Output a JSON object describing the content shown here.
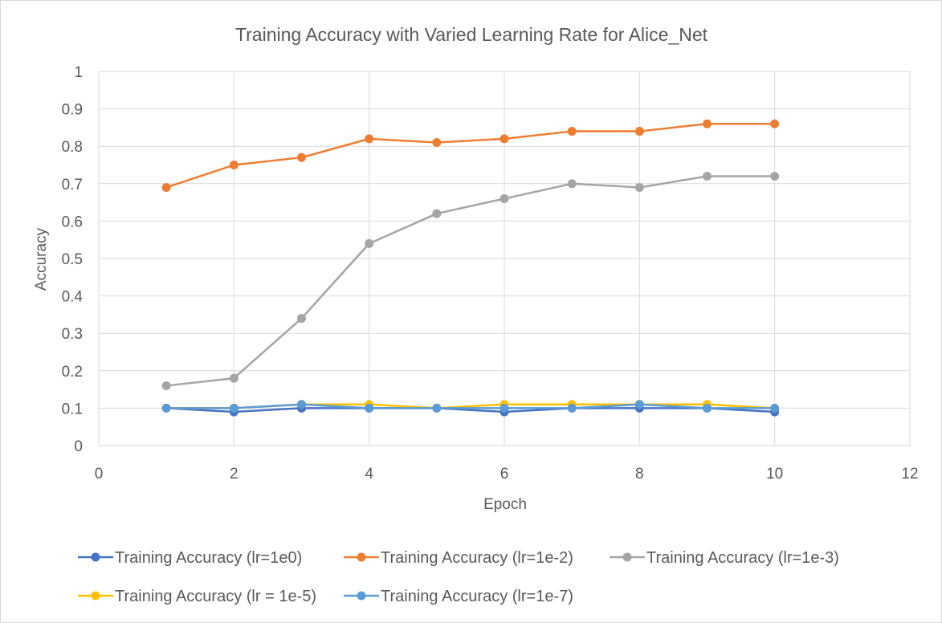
{
  "chart_data": {
    "type": "line",
    "title": "Training Accuracy with Varied Learning Rate for Alice_Net",
    "xlabel": "Epoch",
    "ylabel": "Accuracy",
    "xlim": [
      0,
      12
    ],
    "ylim": [
      0,
      1
    ],
    "x_ticks": [
      "0",
      "2",
      "4",
      "6",
      "8",
      "10",
      "12"
    ],
    "y_ticks": [
      "0",
      "0.1",
      "0.2",
      "0.3",
      "0.4",
      "0.5",
      "0.6",
      "0.7",
      "0.8",
      "0.9",
      "1"
    ],
    "grid": true,
    "legend_position": "bottom",
    "x": [
      1,
      2,
      3,
      4,
      5,
      6,
      7,
      8,
      9,
      10
    ],
    "series": [
      {
        "name": "Training Accuracy (lr=1e0)",
        "color": "#4472c4",
        "values": [
          0.1,
          0.09,
          0.1,
          0.1,
          0.1,
          0.09,
          0.1,
          0.1,
          0.1,
          0.09
        ]
      },
      {
        "name": "Training Accuracy (lr=1e-2)",
        "color": "#ed7d31",
        "values": [
          0.69,
          0.75,
          0.77,
          0.82,
          0.81,
          0.82,
          0.84,
          0.84,
          0.86,
          0.86
        ]
      },
      {
        "name": "Training Accuracy (lr=1e-3)",
        "color": "#a5a5a5",
        "values": [
          0.16,
          0.18,
          0.34,
          0.54,
          0.62,
          0.66,
          0.7,
          0.69,
          0.72,
          0.72
        ]
      },
      {
        "name": "Training Accuracy (lr = 1e-5)",
        "color": "#ffc000",
        "values": [
          0.1,
          0.1,
          0.11,
          0.11,
          0.1,
          0.11,
          0.11,
          0.11,
          0.11,
          0.1
        ]
      },
      {
        "name": "Training Accuracy (lr=1e-7)",
        "color": "#5b9bd5",
        "values": [
          0.1,
          0.1,
          0.11,
          0.1,
          0.1,
          0.1,
          0.1,
          0.11,
          0.1,
          0.1
        ]
      }
    ]
  }
}
